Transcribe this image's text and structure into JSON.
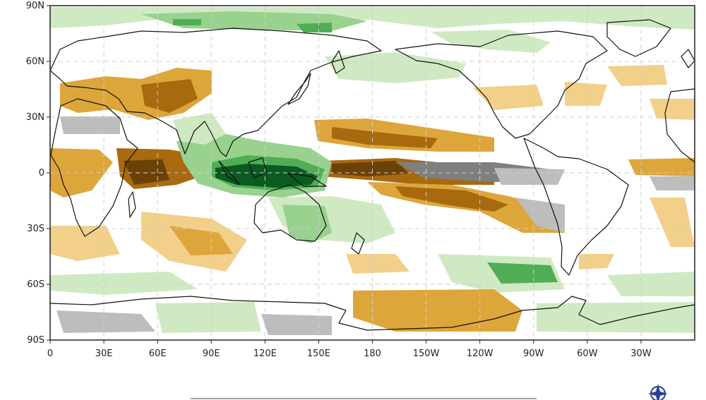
{
  "map": {
    "projection": "plate-carree",
    "center_longitude": 180,
    "lat_ticks": [
      "90N",
      "60N",
      "30N",
      "0",
      "30S",
      "60S",
      "90S"
    ],
    "lon_ticks": [
      "0",
      "30E",
      "60E",
      "90E",
      "120E",
      "150E",
      "180",
      "150W",
      "120W",
      "90W",
      "60W",
      "30W"
    ],
    "colors": {
      "dark_brown": "#6b4108",
      "brown": "#a8690f",
      "orange": "#dda63a",
      "light_orange": "#f2d08a",
      "light_green": "#cfeac3",
      "green": "#99d18f",
      "mid_green": "#4fae55",
      "dark_green": "#0b5a20",
      "gray": "#bdbdbd",
      "dark_gray": "#7f7f7f",
      "coast": "#111111"
    }
  }
}
